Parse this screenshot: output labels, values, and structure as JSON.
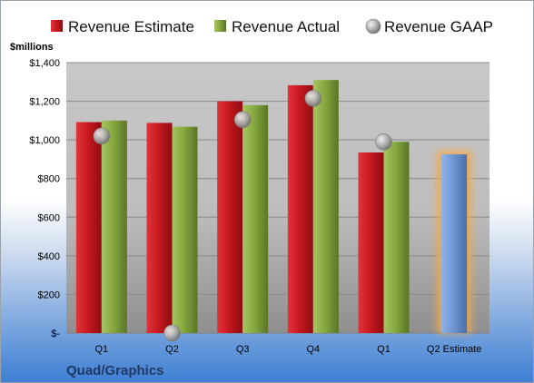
{
  "chart_data": {
    "type": "bar",
    "categories": [
      "Q1",
      "Q2",
      "Q3",
      "Q4",
      "Q1",
      "Q2 Estimate"
    ],
    "series": [
      {
        "name": "Revenue Estimate",
        "color": "#c0161e",
        "values": [
          1092,
          1088,
          1200,
          1283,
          935,
          null
        ]
      },
      {
        "name": "Revenue Actual",
        "color": "#86a83f",
        "values": [
          1100,
          1068,
          1180,
          1310,
          990,
          null
        ]
      },
      {
        "name": "Revenue GAAP",
        "color": "#a6a6a6",
        "marker": "circle",
        "values": [
          1020,
          0,
          1105,
          1215,
          990,
          null
        ]
      }
    ],
    "projection": {
      "category": "Q2 Estimate",
      "value": 925,
      "color": "#6f97d3",
      "glow": "#f5a94a"
    },
    "ylabel": "$millions",
    "ylim": [
      0,
      1400
    ],
    "yticks": [
      0,
      200,
      400,
      600,
      800,
      1000,
      1200,
      1400
    ],
    "ytick_labels": [
      "$-",
      "$200",
      "$400",
      "$600",
      "$800",
      "$1,000",
      "$1,200",
      "$1,400"
    ],
    "grid": true,
    "legend_position": "top",
    "company": "Quad/Graphics"
  }
}
